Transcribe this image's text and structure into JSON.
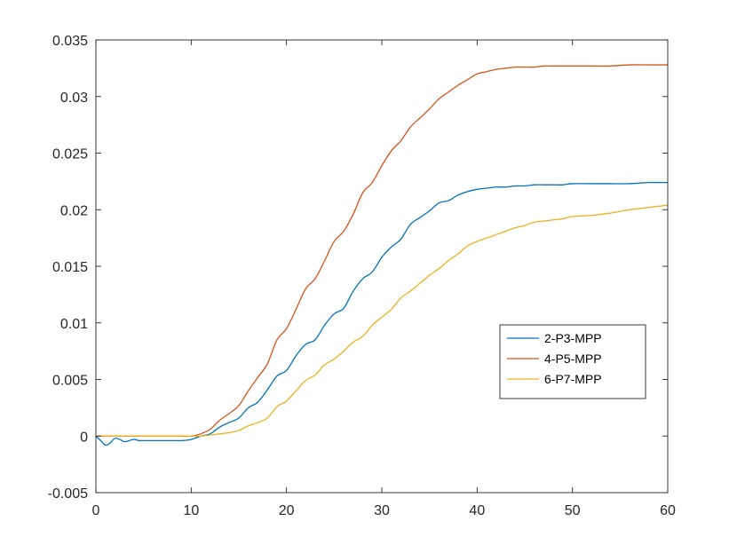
{
  "chart_data": {
    "type": "line",
    "title": "",
    "xlabel": "",
    "ylabel": "",
    "xlim": [
      0,
      60
    ],
    "ylim": [
      -0.005,
      0.035
    ],
    "x_ticks": [
      0,
      10,
      20,
      30,
      40,
      50,
      60
    ],
    "x_tick_labels": [
      "0",
      "10",
      "20",
      "30",
      "40",
      "50",
      "60"
    ],
    "y_ticks": [
      -0.005,
      0,
      0.005,
      0.01,
      0.015,
      0.02,
      0.025,
      0.03,
      0.035
    ],
    "y_tick_labels": [
      "-0.005",
      "0",
      "0.005",
      "0.01",
      "0.015",
      "0.02",
      "0.025",
      "0.03",
      "0.035"
    ],
    "grid": false,
    "legend_position": "right-middle",
    "colors": [
      "#0072BD",
      "#D95319",
      "#EDB120"
    ],
    "series": [
      {
        "name": "2-P3-MPP",
        "color": "#0072BD",
        "x": [
          0,
          0.5,
          1,
          1.5,
          2,
          2.5,
          3,
          3.5,
          4,
          4.5,
          5,
          6,
          7,
          8,
          9,
          10,
          11,
          12,
          13,
          14,
          15,
          16,
          17,
          18,
          19,
          20,
          21,
          22,
          23,
          24,
          25,
          26,
          27,
          28,
          29,
          30,
          31,
          32,
          33,
          34,
          35,
          36,
          37,
          38,
          39,
          40,
          41,
          42,
          43,
          44,
          45,
          46,
          47,
          48,
          49,
          50,
          52,
          54,
          56,
          58,
          60
        ],
        "y": [
          0,
          -0.0004,
          -0.0008,
          -0.0006,
          -0.0002,
          -0.0003,
          -0.0005,
          -0.0004,
          -0.0003,
          -0.0004,
          -0.0004,
          -0.0004,
          -0.0004,
          -0.0004,
          -0.0004,
          -0.0003,
          0.0,
          0.0002,
          0.0008,
          0.0012,
          0.0016,
          0.0025,
          0.003,
          0.0041,
          0.0053,
          0.0058,
          0.0071,
          0.0081,
          0.0085,
          0.0098,
          0.0108,
          0.0113,
          0.0128,
          0.0139,
          0.0145,
          0.0158,
          0.0167,
          0.0174,
          0.0187,
          0.0193,
          0.0199,
          0.0206,
          0.0208,
          0.0213,
          0.0216,
          0.0218,
          0.0219,
          0.022,
          0.022,
          0.0221,
          0.0221,
          0.0222,
          0.0222,
          0.0222,
          0.0222,
          0.0223,
          0.0223,
          0.0223,
          0.0223,
          0.0224,
          0.0224
        ]
      },
      {
        "name": "4-P5-MPP",
        "color": "#D95319",
        "x": [
          0,
          2,
          4,
          6,
          8,
          10,
          11,
          12,
          13,
          14,
          15,
          16,
          17,
          18,
          19,
          20,
          21,
          22,
          23,
          24,
          25,
          26,
          27,
          28,
          29,
          30,
          31,
          32,
          33,
          34,
          35,
          36,
          37,
          38,
          39,
          40,
          41,
          42,
          43,
          44,
          45,
          46,
          47,
          48,
          50,
          52,
          54,
          56,
          58,
          60
        ],
        "y": [
          0,
          0,
          0,
          0,
          0,
          0,
          0.0002,
          0.0006,
          0.0014,
          0.002,
          0.0027,
          0.004,
          0.0052,
          0.0064,
          0.0085,
          0.0095,
          0.0112,
          0.013,
          0.0139,
          0.0155,
          0.0172,
          0.0181,
          0.0196,
          0.0215,
          0.0224,
          0.0239,
          0.0252,
          0.0261,
          0.0273,
          0.0281,
          0.0289,
          0.0298,
          0.0304,
          0.031,
          0.0315,
          0.032,
          0.0322,
          0.0324,
          0.0325,
          0.0326,
          0.0326,
          0.0326,
          0.0327,
          0.0327,
          0.0327,
          0.0327,
          0.0327,
          0.0328,
          0.0328,
          0.0328
        ]
      },
      {
        "name": "6-P7-MPP",
        "color": "#EDB120",
        "x": [
          0,
          2,
          4,
          6,
          8,
          10,
          11,
          12,
          13,
          14,
          15,
          16,
          17,
          18,
          19,
          20,
          21,
          22,
          23,
          24,
          25,
          26,
          27,
          28,
          29,
          30,
          31,
          32,
          33,
          34,
          35,
          36,
          37,
          38,
          39,
          40,
          41,
          42,
          43,
          44,
          45,
          46,
          47,
          48,
          49,
          50,
          52,
          54,
          56,
          58,
          60
        ],
        "y": [
          0,
          0,
          0,
          0,
          0,
          0,
          0.0,
          0.0001,
          0.0002,
          0.0003,
          0.0005,
          0.0009,
          0.0012,
          0.0016,
          0.0026,
          0.0031,
          0.004,
          0.0049,
          0.0054,
          0.0063,
          0.0068,
          0.0075,
          0.0083,
          0.0088,
          0.0098,
          0.0105,
          0.0112,
          0.0122,
          0.0128,
          0.0135,
          0.0142,
          0.0148,
          0.0155,
          0.0161,
          0.0168,
          0.0172,
          0.0175,
          0.0178,
          0.0181,
          0.0184,
          0.0186,
          0.0189,
          0.019,
          0.0191,
          0.0192,
          0.0194,
          0.0195,
          0.0197,
          0.02,
          0.0202,
          0.0204
        ]
      }
    ]
  }
}
